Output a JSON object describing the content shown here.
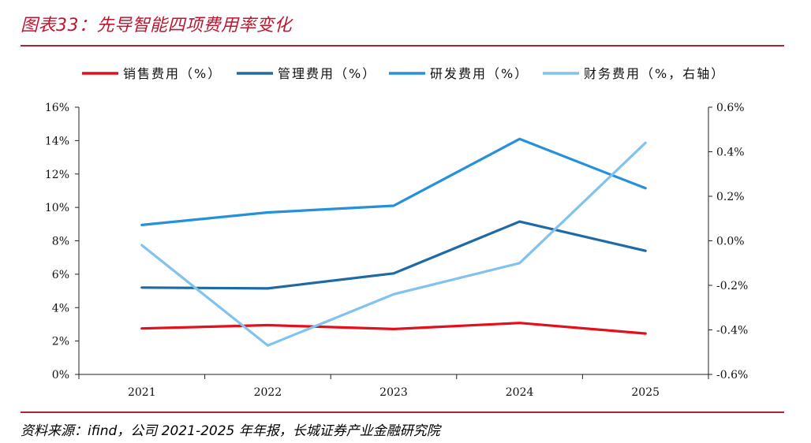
{
  "header": {
    "title": "图表33：先导智能四项费用率变化"
  },
  "footer": {
    "source": "资料来源：ifind，公司 2021-2025 年年报，长城证券产业金融研究院"
  },
  "chart_data": {
    "type": "line",
    "categories": [
      "2021",
      "2022",
      "2023",
      "2024",
      "2025"
    ],
    "left_axis": {
      "ylim": [
        0,
        16
      ],
      "ticks": [
        0,
        2,
        4,
        6,
        8,
        10,
        12,
        14,
        16
      ],
      "tick_labels": [
        "0%",
        "2%",
        "4%",
        "6%",
        "8%",
        "10%",
        "12%",
        "14%",
        "16%"
      ]
    },
    "right_axis": {
      "ylim": [
        -0.6,
        0.6
      ],
      "ticks": [
        -0.6,
        -0.4,
        -0.2,
        0.0,
        0.2,
        0.4,
        0.6
      ],
      "tick_labels": [
        "-0.6%",
        "-0.4%",
        "-0.2%",
        "0.0%",
        "0.2%",
        "0.4%",
        "0.6%"
      ]
    },
    "series": [
      {
        "name": "销售费用（%）",
        "axis": "left",
        "color": "#e3101b",
        "values": [
          2.75,
          2.95,
          2.72,
          3.08,
          2.45
        ]
      },
      {
        "name": "管理费用（%）",
        "axis": "left",
        "color": "#1f6aa5",
        "values": [
          5.2,
          5.15,
          6.05,
          9.15,
          7.4
        ]
      },
      {
        "name": "研发费用（%）",
        "axis": "left",
        "color": "#2590db",
        "values": [
          8.95,
          9.7,
          10.1,
          14.1,
          11.15
        ]
      },
      {
        "name": "财务费用（%，右轴）",
        "axis": "right",
        "color": "#82c2ee",
        "values": [
          -0.02,
          -0.47,
          -0.24,
          -0.1,
          0.44
        ]
      }
    ],
    "legend_position": "top",
    "grid": false
  }
}
